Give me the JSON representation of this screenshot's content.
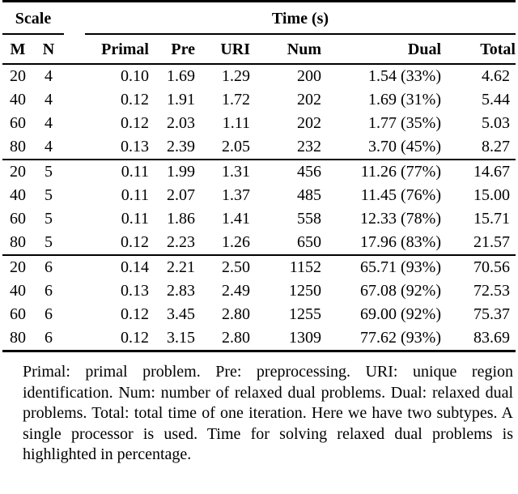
{
  "page": {
    "background": "#ffffff",
    "text_color": "#000000",
    "rule_color": "#000000"
  },
  "table": {
    "group_headers": [
      {
        "label": "Scale",
        "span": 2
      },
      {
        "label": "Time (s)",
        "span": 6
      }
    ],
    "columns": [
      {
        "key": "m",
        "label": "M",
        "align": "center"
      },
      {
        "key": "n",
        "label": "N",
        "align": "center"
      },
      {
        "key": "primal",
        "label": "Primal",
        "align": "right"
      },
      {
        "key": "pre",
        "label": "Pre",
        "align": "right"
      },
      {
        "key": "uri",
        "label": "URI",
        "align": "right"
      },
      {
        "key": "num",
        "label": "Num",
        "align": "right"
      },
      {
        "key": "dual",
        "label": "Dual",
        "align": "right"
      },
      {
        "key": "total",
        "label": "Total",
        "align": "right"
      }
    ],
    "groups": [
      {
        "rows": [
          [
            "20",
            "4",
            "0.10",
            "1.69",
            "1.29",
            "200",
            "1.54 (33%)",
            "4.62"
          ],
          [
            "40",
            "4",
            "0.12",
            "1.91",
            "1.72",
            "202",
            "1.69 (31%)",
            "5.44"
          ],
          [
            "60",
            "4",
            "0.12",
            "2.03",
            "1.11",
            "202",
            "1.77 (35%)",
            "5.03"
          ],
          [
            "80",
            "4",
            "0.13",
            "2.39",
            "2.05",
            "232",
            "3.70 (45%)",
            "8.27"
          ]
        ]
      },
      {
        "rows": [
          [
            "20",
            "5",
            "0.11",
            "1.99",
            "1.31",
            "456",
            "11.26 (77%)",
            "14.67"
          ],
          [
            "40",
            "5",
            "0.11",
            "2.07",
            "1.37",
            "485",
            "11.45 (76%)",
            "15.00"
          ],
          [
            "60",
            "5",
            "0.11",
            "1.86",
            "1.41",
            "558",
            "12.33 (78%)",
            "15.71"
          ],
          [
            "80",
            "5",
            "0.12",
            "2.23",
            "1.26",
            "650",
            "17.96 (83%)",
            "21.57"
          ]
        ]
      },
      {
        "rows": [
          [
            "20",
            "6",
            "0.14",
            "2.21",
            "2.50",
            "1152",
            "65.71 (93%)",
            "70.56"
          ],
          [
            "40",
            "6",
            "0.13",
            "2.83",
            "2.49",
            "1250",
            "67.08 (92%)",
            "72.53"
          ],
          [
            "60",
            "6",
            "0.12",
            "3.45",
            "2.80",
            "1255",
            "69.00 (92%)",
            "75.37"
          ],
          [
            "80",
            "6",
            "0.12",
            "3.15",
            "2.80",
            "1309",
            "77.62 (93%)",
            "83.69"
          ]
        ]
      }
    ]
  },
  "caption": {
    "text": "Primal: primal problem. Pre: preprocessing. URI: unique region identification. Num: number of relaxed dual problems. Dual: relaxed dual problems. Total: total time of one iteration. Here we have two subtypes. A single processor is used. Time for solving relaxed dual problems is highlighted in percentage."
  }
}
